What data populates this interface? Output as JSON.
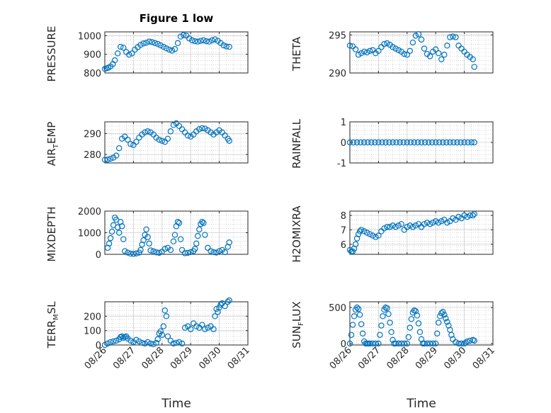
{
  "chart_data": [
    {
      "type": "scatter",
      "title": "Figure 1 low",
      "ylabel": "PRESSURE",
      "xlabel": "",
      "xlim": [
        0,
        5
      ],
      "ylim": [
        800,
        1020
      ],
      "yticks": [
        800,
        900,
        1000
      ],
      "ytick_labels": [
        "800",
        "900",
        "1000"
      ],
      "xticks": [
        0,
        1,
        2,
        3,
        4,
        5
      ],
      "xtick_labels": [],
      "grid": true,
      "x": [
        0,
        0.06,
        0.12,
        0.2,
        0.28,
        0.35,
        0.45,
        0.55,
        0.65,
        0.75,
        0.85,
        0.95,
        1.05,
        1.15,
        1.25,
        1.35,
        1.45,
        1.55,
        1.65,
        1.75,
        1.85,
        1.95,
        2.05,
        2.15,
        2.25,
        2.35,
        2.45,
        2.55,
        2.65,
        2.75,
        2.85,
        2.95,
        3.05,
        3.15,
        3.25,
        3.35,
        3.45,
        3.55,
        3.65,
        3.75,
        3.85,
        3.95,
        4.05,
        4.15,
        4.25,
        4.35
      ],
      "y": [
        822,
        825,
        828,
        835,
        848,
        868,
        905,
        940,
        935,
        912,
        898,
        905,
        925,
        938,
        950,
        958,
        962,
        968,
        965,
        960,
        955,
        948,
        940,
        932,
        925,
        920,
        928,
        960,
        995,
        1003,
        1000,
        985,
        975,
        970,
        968,
        972,
        975,
        970,
        968,
        975,
        980,
        972,
        960,
        948,
        942,
        940
      ]
    },
    {
      "type": "scatter",
      "ylabel": "THETA",
      "xlim": [
        0,
        5
      ],
      "ylim": [
        290,
        295.4
      ],
      "yticks": [
        290,
        295
      ],
      "ytick_labels": [
        "290",
        "295"
      ],
      "xticks": [
        0,
        1,
        2,
        3,
        4,
        5
      ],
      "xtick_labels": [],
      "grid": true,
      "x": [
        0,
        0.1,
        0.2,
        0.3,
        0.4,
        0.5,
        0.6,
        0.7,
        0.8,
        0.9,
        1.0,
        1.1,
        1.2,
        1.3,
        1.4,
        1.5,
        1.6,
        1.7,
        1.8,
        1.9,
        2.0,
        2.1,
        2.2,
        2.3,
        2.4,
        2.5,
        2.6,
        2.7,
        2.8,
        2.9,
        3.0,
        3.1,
        3.2,
        3.3,
        3.4,
        3.5,
        3.6,
        3.7,
        3.8,
        3.9,
        4.0,
        4.1,
        4.2,
        4.3,
        4.35
      ],
      "y": [
        293.6,
        293.5,
        293.1,
        292.4,
        292.6,
        292.8,
        292.7,
        292.9,
        293.0,
        292.6,
        292.9,
        293.4,
        293.8,
        293.9,
        293.7,
        293.4,
        293.2,
        293.0,
        292.8,
        292.5,
        292.4,
        292.9,
        294.0,
        294.9,
        295.1,
        294.4,
        293.2,
        292.5,
        292.2,
        292.8,
        293.1,
        292.6,
        291.8,
        292.4,
        293.6,
        294.7,
        294.8,
        294.7,
        293.6,
        293.2,
        292.8,
        292.4,
        292.1,
        291.8,
        290.8
      ]
    },
    {
      "type": "scatter",
      "ylabel": "AIR_TEMP",
      "xlim": [
        0,
        5
      ],
      "ylim": [
        276,
        295.5
      ],
      "yticks": [
        280,
        290
      ],
      "ytick_labels": [
        "280",
        "290"
      ],
      "xticks": [
        0,
        1,
        2,
        3,
        4,
        5
      ],
      "xtick_labels": [],
      "grid": true,
      "x": [
        0,
        0.1,
        0.2,
        0.3,
        0.4,
        0.5,
        0.6,
        0.7,
        0.8,
        0.9,
        1.0,
        1.1,
        1.2,
        1.3,
        1.4,
        1.5,
        1.6,
        1.7,
        1.8,
        1.9,
        2.0,
        2.1,
        2.2,
        2.3,
        2.4,
        2.5,
        2.6,
        2.7,
        2.8,
        2.9,
        3.0,
        3.1,
        3.2,
        3.3,
        3.4,
        3.5,
        3.6,
        3.7,
        3.8,
        3.9,
        4.0,
        4.1,
        4.2,
        4.3,
        4.35
      ],
      "y": [
        277.5,
        277.6,
        278.0,
        278.5,
        279.5,
        283.0,
        287.5,
        288.5,
        287.0,
        285.0,
        284.5,
        286.0,
        288.0,
        289.5,
        290.5,
        291.0,
        290.5,
        289.5,
        288.0,
        287.0,
        286.5,
        286.0,
        287.5,
        291.0,
        294.0,
        294.8,
        293.5,
        292.0,
        290.5,
        289.0,
        288.5,
        289.5,
        291.0,
        292.0,
        292.5,
        292.3,
        291.5,
        290.5,
        289.5,
        290.5,
        291.5,
        290.5,
        289.0,
        287.5,
        286.5
      ]
    },
    {
      "type": "scatter",
      "ylabel": "RAINFALL",
      "xlim": [
        0,
        5
      ],
      "ylim": [
        -1,
        1
      ],
      "yticks": [
        -1,
        0,
        1
      ],
      "ytick_labels": [
        "-1",
        "0",
        "1"
      ],
      "xticks": [
        0,
        1,
        2,
        3,
        4,
        5
      ],
      "xtick_labels": [],
      "grid": true,
      "x": [
        0,
        0.125,
        0.25,
        0.375,
        0.5,
        0.625,
        0.75,
        0.875,
        1.0,
        1.125,
        1.25,
        1.375,
        1.5,
        1.625,
        1.75,
        1.875,
        2.0,
        2.125,
        2.25,
        2.375,
        2.5,
        2.625,
        2.75,
        2.875,
        3.0,
        3.125,
        3.25,
        3.375,
        3.5,
        3.625,
        3.75,
        3.875,
        4.0,
        4.125,
        4.25,
        4.35
      ],
      "y": [
        0,
        0,
        0,
        0,
        0,
        0,
        0,
        0,
        0,
        0,
        0,
        0,
        0,
        0,
        0,
        0,
        0,
        0,
        0,
        0,
        0,
        0,
        0,
        0,
        0,
        0,
        0,
        0,
        0,
        0,
        0,
        0,
        0,
        0,
        0,
        0
      ]
    },
    {
      "type": "scatter",
      "ylabel": "MIXDEPTH",
      "xlim": [
        0,
        5
      ],
      "ylim": [
        0,
        2000
      ],
      "yticks": [
        0,
        1000,
        2000
      ],
      "ytick_labels": [
        "0",
        "1000",
        "2000"
      ],
      "xticks": [
        0,
        1,
        2,
        3,
        4,
        5
      ],
      "xtick_labels": [],
      "grid": true,
      "x": [
        0.1,
        0.15,
        0.2,
        0.25,
        0.3,
        0.35,
        0.4,
        0.45,
        0.5,
        0.55,
        0.6,
        0.65,
        0.7,
        0.8,
        0.9,
        1.0,
        1.1,
        1.2,
        1.25,
        1.3,
        1.35,
        1.4,
        1.45,
        1.5,
        1.55,
        1.6,
        1.7,
        1.8,
        1.9,
        2.0,
        2.1,
        2.2,
        2.3,
        2.4,
        2.45,
        2.5,
        2.55,
        2.6,
        2.65,
        2.7,
        2.8,
        2.9,
        3.0,
        3.1,
        3.15,
        3.2,
        3.25,
        3.3,
        3.35,
        3.4,
        3.45,
        3.5,
        3.6,
        3.7,
        3.8,
        3.9,
        4.0,
        4.1,
        4.2,
        4.3,
        4.35
      ],
      "y": [
        300,
        500,
        750,
        1050,
        1350,
        1700,
        1600,
        1250,
        1000,
        1500,
        1300,
        700,
        150,
        80,
        30,
        20,
        40,
        80,
        200,
        450,
        650,
        900,
        1150,
        800,
        500,
        180,
        140,
        90,
        70,
        120,
        250,
        300,
        200,
        600,
        900,
        1300,
        1500,
        1450,
        700,
        200,
        50,
        70,
        100,
        150,
        250,
        500,
        850,
        1150,
        1400,
        1500,
        1450,
        900,
        300,
        150,
        100,
        80,
        150,
        200,
        100,
        350,
        550
      ]
    },
    {
      "type": "scatter",
      "ylabel": "H2OMIXRA",
      "xlim": [
        0,
        5
      ],
      "ylim": [
        5.3,
        8.3
      ],
      "yticks": [
        6,
        7,
        8
      ],
      "ytick_labels": [
        "6",
        "7",
        "8"
      ],
      "xticks": [
        0,
        1,
        2,
        3,
        4,
        5
      ],
      "xtick_labels": [],
      "grid": true,
      "x": [
        0,
        0.05,
        0.1,
        0.15,
        0.2,
        0.25,
        0.3,
        0.35,
        0.4,
        0.5,
        0.6,
        0.7,
        0.8,
        0.9,
        1.0,
        1.1,
        1.2,
        1.3,
        1.4,
        1.5,
        1.6,
        1.7,
        1.8,
        1.9,
        2.0,
        2.1,
        2.2,
        2.3,
        2.4,
        2.5,
        2.6,
        2.7,
        2.8,
        2.9,
        3.0,
        3.1,
        3.2,
        3.3,
        3.4,
        3.5,
        3.6,
        3.7,
        3.8,
        3.9,
        4.0,
        4.1,
        4.2,
        4.3,
        4.35
      ],
      "y": [
        5.6,
        5.5,
        5.5,
        5.7,
        6.0,
        6.4,
        6.7,
        6.9,
        7.0,
        6.9,
        6.8,
        6.7,
        6.6,
        6.5,
        6.6,
        6.9,
        7.1,
        7.2,
        7.2,
        7.3,
        7.2,
        7.3,
        7.4,
        7.0,
        7.2,
        7.3,
        7.2,
        7.3,
        7.4,
        7.2,
        7.4,
        7.5,
        7.4,
        7.5,
        7.6,
        7.5,
        7.6,
        7.7,
        7.5,
        7.6,
        7.8,
        7.7,
        7.9,
        7.8,
        8.0,
        7.9,
        8.0,
        8.0,
        8.1
      ]
    },
    {
      "type": "scatter",
      "ylabel": "TERR_MSL",
      "xlabel": "Time",
      "xlim": [
        0,
        5
      ],
      "ylim": [
        0,
        300
      ],
      "yticks": [
        0,
        100,
        200
      ],
      "ytick_labels": [
        "0",
        "100",
        "200"
      ],
      "xticks": [
        0,
        1,
        2,
        3,
        4,
        5
      ],
      "xtick_labels": [
        "08/26",
        "08/27",
        "08/28",
        "08/29",
        "08/30",
        "08/31"
      ],
      "grid": true,
      "x": [
        0,
        0.1,
        0.2,
        0.3,
        0.4,
        0.5,
        0.55,
        0.6,
        0.65,
        0.7,
        0.75,
        0.8,
        0.9,
        1.0,
        1.1,
        1.2,
        1.3,
        1.4,
        1.5,
        1.6,
        1.7,
        1.8,
        1.85,
        1.9,
        1.95,
        2.0,
        2.05,
        2.1,
        2.15,
        2.2,
        2.3,
        2.4,
        2.5,
        2.6,
        2.7,
        2.8,
        2.9,
        3.0,
        3.1,
        3.2,
        3.3,
        3.4,
        3.5,
        3.6,
        3.7,
        3.8,
        3.85,
        3.9,
        3.95,
        4.0,
        4.05,
        4.1,
        4.2,
        4.3,
        4.35
      ],
      "y": [
        0,
        10,
        20,
        25,
        30,
        40,
        55,
        60,
        50,
        55,
        60,
        45,
        30,
        20,
        35,
        25,
        15,
        10,
        20,
        10,
        5,
        15,
        40,
        80,
        95,
        70,
        130,
        240,
        200,
        60,
        30,
        10,
        15,
        20,
        10,
        120,
        130,
        110,
        150,
        130,
        120,
        140,
        110,
        120,
        130,
        110,
        200,
        250,
        230,
        260,
        280,
        290,
        270,
        300,
        310
      ]
    },
    {
      "type": "scatter",
      "ylabel": "SUN_FLUX",
      "xlabel": "Time",
      "xlim": [
        0,
        5
      ],
      "ylim": [
        -20,
        580
      ],
      "yticks": [
        0,
        500
      ],
      "ytick_labels": [
        "0",
        "500"
      ],
      "xticks": [
        0,
        1,
        2,
        3,
        4,
        5
      ],
      "xtick_labels": [
        "08/26",
        "08/27",
        "08/28",
        "08/29",
        "08/30",
        "08/31"
      ],
      "grid": true,
      "x": [
        0,
        0.05,
        0.1,
        0.15,
        0.2,
        0.25,
        0.3,
        0.35,
        0.4,
        0.45,
        0.5,
        0.55,
        0.6,
        0.65,
        0.7,
        0.8,
        0.9,
        1.0,
        1.05,
        1.1,
        1.15,
        1.2,
        1.25,
        1.3,
        1.35,
        1.4,
        1.45,
        1.5,
        1.55,
        1.6,
        1.7,
        1.8,
        1.9,
        2.0,
        2.05,
        2.1,
        2.15,
        2.2,
        2.25,
        2.3,
        2.35,
        2.4,
        2.45,
        2.5,
        2.55,
        2.6,
        2.7,
        2.8,
        2.9,
        3.0,
        3.05,
        3.1,
        3.15,
        3.2,
        3.25,
        3.3,
        3.35,
        3.4,
        3.45,
        3.5,
        3.55,
        3.6,
        3.7,
        3.8,
        3.9,
        4.0,
        4.05,
        4.1,
        4.2,
        4.3,
        4.35
      ],
      "y": [
        0,
        120,
        260,
        380,
        470,
        500,
        480,
        400,
        270,
        140,
        30,
        0,
        0,
        0,
        0,
        0,
        0,
        0,
        120,
        250,
        380,
        470,
        500,
        490,
        410,
        290,
        160,
        50,
        0,
        0,
        0,
        0,
        0,
        0,
        90,
        220,
        340,
        430,
        460,
        450,
        390,
        280,
        160,
        60,
        0,
        0,
        0,
        0,
        0,
        0,
        140,
        290,
        380,
        420,
        440,
        400,
        350,
        300,
        250,
        190,
        120,
        60,
        20,
        0,
        0,
        0,
        10,
        30,
        40,
        50,
        40
      ]
    }
  ]
}
